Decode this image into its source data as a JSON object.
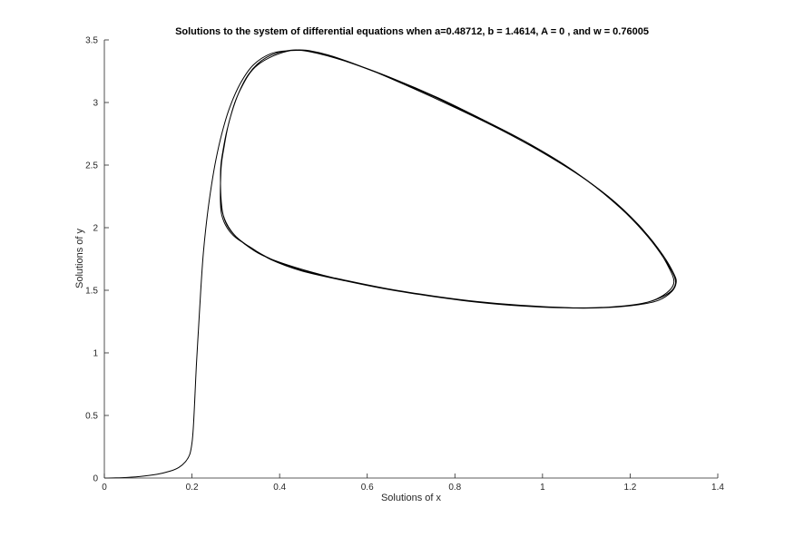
{
  "chart_data": {
    "type": "line",
    "title": "Solutions to the system of differential equations when a=0.48712, b = 1.4614, A = 0 , and w = 0.76005",
    "xlabel": "Solutions of x",
    "ylabel": "Solutions of y",
    "xlim": [
      0,
      1.4
    ],
    "ylim": [
      0,
      3.5
    ],
    "xticks": [
      0,
      0.2,
      0.4,
      0.6,
      0.8,
      1,
      1.2,
      1.4
    ],
    "xtick_labels": [
      "0",
      "0.2",
      "0.4",
      "0.6",
      "0.8",
      "1",
      "1.2",
      "1.4"
    ],
    "yticks": [
      0,
      0.5,
      1,
      1.5,
      2,
      2.5,
      3,
      3.5
    ],
    "ytick_labels": [
      "0",
      "0.5",
      "1",
      "1.5",
      "2",
      "2.5",
      "3",
      "3.5"
    ],
    "grid": false,
    "line_color": "#000000",
    "series": [
      {
        "points": [
          [
            0,
            0
          ],
          [
            0.04,
            0.003
          ],
          [
            0.08,
            0.012
          ],
          [
            0.12,
            0.03
          ],
          [
            0.15,
            0.055
          ],
          [
            0.17,
            0.085
          ],
          [
            0.185,
            0.13
          ],
          [
            0.195,
            0.19
          ],
          [
            0.2,
            0.28
          ],
          [
            0.203,
            0.4
          ],
          [
            0.206,
            0.6
          ],
          [
            0.21,
            0.9
          ],
          [
            0.215,
            1.2
          ],
          [
            0.22,
            1.5
          ],
          [
            0.226,
            1.8
          ],
          [
            0.235,
            2.1
          ],
          [
            0.245,
            2.35
          ],
          [
            0.255,
            2.55
          ],
          [
            0.268,
            2.75
          ],
          [
            0.285,
            2.95
          ],
          [
            0.31,
            3.15
          ],
          [
            0.34,
            3.3
          ],
          [
            0.38,
            3.39
          ],
          [
            0.425,
            3.415
          ],
          [
            0.47,
            3.405
          ],
          [
            0.55,
            3.33
          ],
          [
            0.65,
            3.2
          ],
          [
            0.75,
            3.05
          ],
          [
            0.85,
            2.88
          ],
          [
            0.95,
            2.7
          ],
          [
            1.05,
            2.5
          ],
          [
            1.15,
            2.25
          ],
          [
            1.22,
            2.02
          ],
          [
            1.265,
            1.82
          ],
          [
            1.29,
            1.67
          ],
          [
            1.3,
            1.57
          ],
          [
            1.29,
            1.5
          ],
          [
            1.26,
            1.43
          ],
          [
            1.22,
            1.39
          ],
          [
            1.15,
            1.365
          ],
          [
            1.07,
            1.36
          ],
          [
            0.95,
            1.38
          ],
          [
            0.85,
            1.41
          ],
          [
            0.75,
            1.455
          ],
          [
            0.65,
            1.51
          ],
          [
            0.55,
            1.58
          ],
          [
            0.45,
            1.66
          ],
          [
            0.38,
            1.75
          ],
          [
            0.33,
            1.85
          ],
          [
            0.3,
            1.93
          ],
          [
            0.28,
            2.02
          ],
          [
            0.27,
            2.12
          ],
          [
            0.266,
            2.25
          ],
          [
            0.265,
            2.4
          ],
          [
            0.266,
            2.5
          ],
          [
            0.27,
            2.6
          ],
          [
            0.28,
            2.78
          ],
          [
            0.3,
            3.02
          ],
          [
            0.33,
            3.23
          ],
          [
            0.37,
            3.36
          ],
          [
            0.425,
            3.418
          ],
          [
            0.48,
            3.4
          ],
          [
            0.56,
            3.32
          ],
          [
            0.66,
            3.19
          ],
          [
            0.76,
            3.04
          ],
          [
            0.86,
            2.87
          ],
          [
            0.96,
            2.69
          ],
          [
            1.06,
            2.48
          ],
          [
            1.16,
            2.22
          ],
          [
            1.23,
            1.98
          ],
          [
            1.275,
            1.78
          ],
          [
            1.3,
            1.63
          ],
          [
            1.305,
            1.56
          ],
          [
            1.295,
            1.49
          ],
          [
            1.265,
            1.42
          ],
          [
            1.22,
            1.385
          ],
          [
            1.15,
            1.362
          ],
          [
            1.07,
            1.358
          ],
          [
            0.95,
            1.375
          ],
          [
            0.85,
            1.405
          ],
          [
            0.75,
            1.45
          ],
          [
            0.65,
            1.505
          ],
          [
            0.55,
            1.575
          ],
          [
            0.45,
            1.655
          ],
          [
            0.38,
            1.745
          ],
          [
            0.335,
            1.84
          ],
          [
            0.3,
            1.92
          ],
          [
            0.28,
            2.0
          ],
          [
            0.268,
            2.1
          ],
          [
            0.265,
            2.2
          ],
          [
            0.265,
            2.35
          ],
          [
            0.267,
            2.5
          ],
          [
            0.272,
            2.62
          ],
          [
            0.285,
            2.85
          ],
          [
            0.31,
            3.1
          ],
          [
            0.35,
            3.3
          ],
          [
            0.425,
            3.415
          ],
          [
            0.5,
            3.39
          ],
          [
            0.6,
            3.27
          ],
          [
            0.7,
            3.12
          ],
          [
            0.8,
            2.96
          ],
          [
            0.9,
            2.79
          ],
          [
            1.0,
            2.6
          ],
          [
            1.1,
            2.38
          ],
          [
            1.18,
            2.15
          ],
          [
            1.24,
            1.93
          ],
          [
            1.28,
            1.74
          ],
          [
            1.302,
            1.6
          ],
          [
            1.3,
            1.52
          ],
          [
            1.28,
            1.46
          ],
          [
            1.24,
            1.405
          ],
          [
            1.18,
            1.372
          ],
          [
            1.1,
            1.36
          ],
          [
            1.0,
            1.365
          ],
          [
            0.9,
            1.39
          ],
          [
            0.8,
            1.43
          ],
          [
            0.7,
            1.48
          ],
          [
            0.6,
            1.54
          ],
          [
            0.5,
            1.62
          ],
          [
            0.42,
            1.7
          ],
          [
            0.36,
            1.78
          ],
          [
            0.32,
            1.87
          ],
          [
            0.295,
            1.95
          ],
          [
            0.278,
            2.04
          ],
          [
            0.268,
            2.15
          ],
          [
            0.265,
            2.3
          ],
          [
            0.266,
            2.45
          ]
        ]
      }
    ]
  }
}
